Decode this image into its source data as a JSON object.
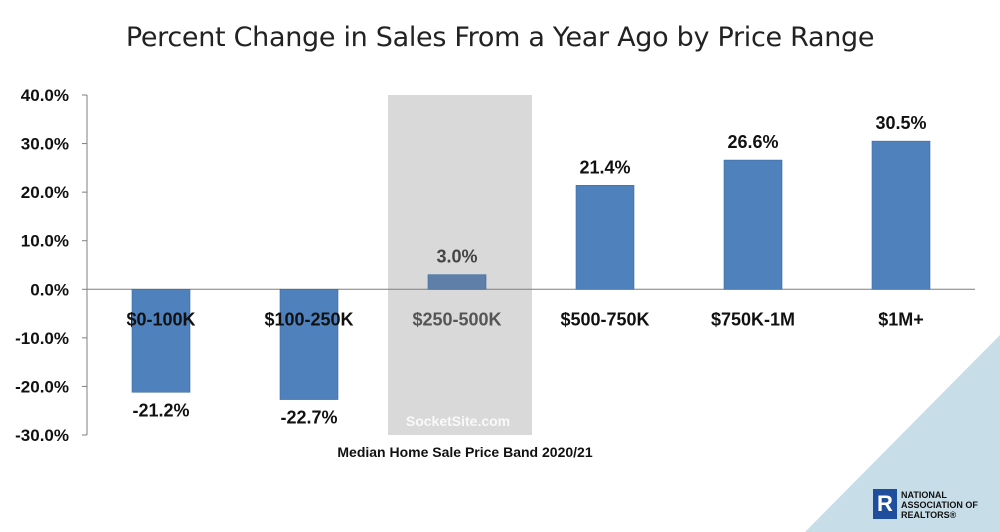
{
  "chart_data": {
    "type": "bar",
    "title": "Percent Change in Sales From a Year Ago by Price Range",
    "xlabel": "Median Home Sale Price Band 2020/21",
    "ylabel": "",
    "categories": [
      "$0-100K",
      "$100-250K",
      "$250-500K",
      "$500-750K",
      "$750K-1M",
      "$1M+"
    ],
    "values": [
      -21.2,
      -22.7,
      3.0,
      21.4,
      26.6,
      30.5
    ],
    "value_labels": [
      "-21.2%",
      "-22.7%",
      "3.0%",
      "21.4%",
      "26.6%",
      "30.5%"
    ],
    "yticks": [
      40,
      30,
      20,
      10,
      0,
      -10,
      -20,
      -30
    ],
    "ytick_labels": [
      "40.0%",
      "30.0%",
      "20.0%",
      "10.0%",
      "0.0%",
      "-10.0%",
      "-20.0%",
      "-30.0%"
    ],
    "ylim": [
      -30,
      40
    ],
    "highlighted_category": "$250-500K",
    "grid": false,
    "legend": "none",
    "colors": {
      "bar": "#4f81bd",
      "bar_highlighted": "#5f7fa8",
      "highlight_band": "#d9d9d9",
      "corner_accent": "#c7dde8"
    }
  },
  "watermark": "SocketSite.com",
  "logo": {
    "mark": "R",
    "text": "NATIONAL\nASSOCIATION OF\nREALTORS®"
  }
}
